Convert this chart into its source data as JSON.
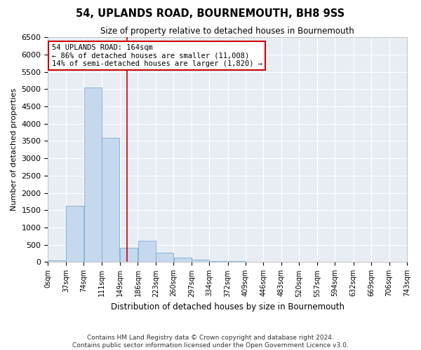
{
  "title": "54, UPLANDS ROAD, BOURNEMOUTH, BH8 9SS",
  "subtitle": "Size of property relative to detached houses in Bournemouth",
  "xlabel": "Distribution of detached houses by size in Bournemouth",
  "ylabel": "Number of detached properties",
  "bar_color": "#c5d8ee",
  "bar_edge_color": "#7bafd4",
  "background_color": "#e8edf4",
  "vline_x": 164,
  "vline_color": "#cc0000",
  "annotation_title": "54 UPLANDS ROAD: 164sqm",
  "annotation_line1": "← 86% of detached houses are smaller (11,008)",
  "annotation_line2": "14% of semi-detached houses are larger (1,820) →",
  "bin_edges": [
    0,
    37,
    74,
    111,
    149,
    186,
    223,
    260,
    297,
    334,
    372,
    409,
    446,
    483,
    520,
    557,
    594,
    632,
    669,
    706,
    743
  ],
  "bin_labels": [
    "0sqm",
    "37sqm",
    "74sqm",
    "111sqm",
    "149sqm",
    "186sqm",
    "223sqm",
    "260sqm",
    "297sqm",
    "334sqm",
    "372sqm",
    "409sqm",
    "446sqm",
    "483sqm",
    "520sqm",
    "557sqm",
    "594sqm",
    "632sqm",
    "669sqm",
    "706sqm",
    "743sqm"
  ],
  "bar_heights": [
    55,
    1620,
    5050,
    3580,
    420,
    620,
    280,
    125,
    70,
    38,
    20,
    10,
    5,
    3,
    2,
    1,
    0,
    0,
    0,
    0
  ],
  "ylim": [
    0,
    6500
  ],
  "yticks": [
    0,
    500,
    1000,
    1500,
    2000,
    2500,
    3000,
    3500,
    4000,
    4500,
    5000,
    5500,
    6000,
    6500
  ],
  "footer_line1": "Contains HM Land Registry data © Crown copyright and database right 2024.",
  "footer_line2": "Contains public sector information licensed under the Open Government Licence v3.0."
}
